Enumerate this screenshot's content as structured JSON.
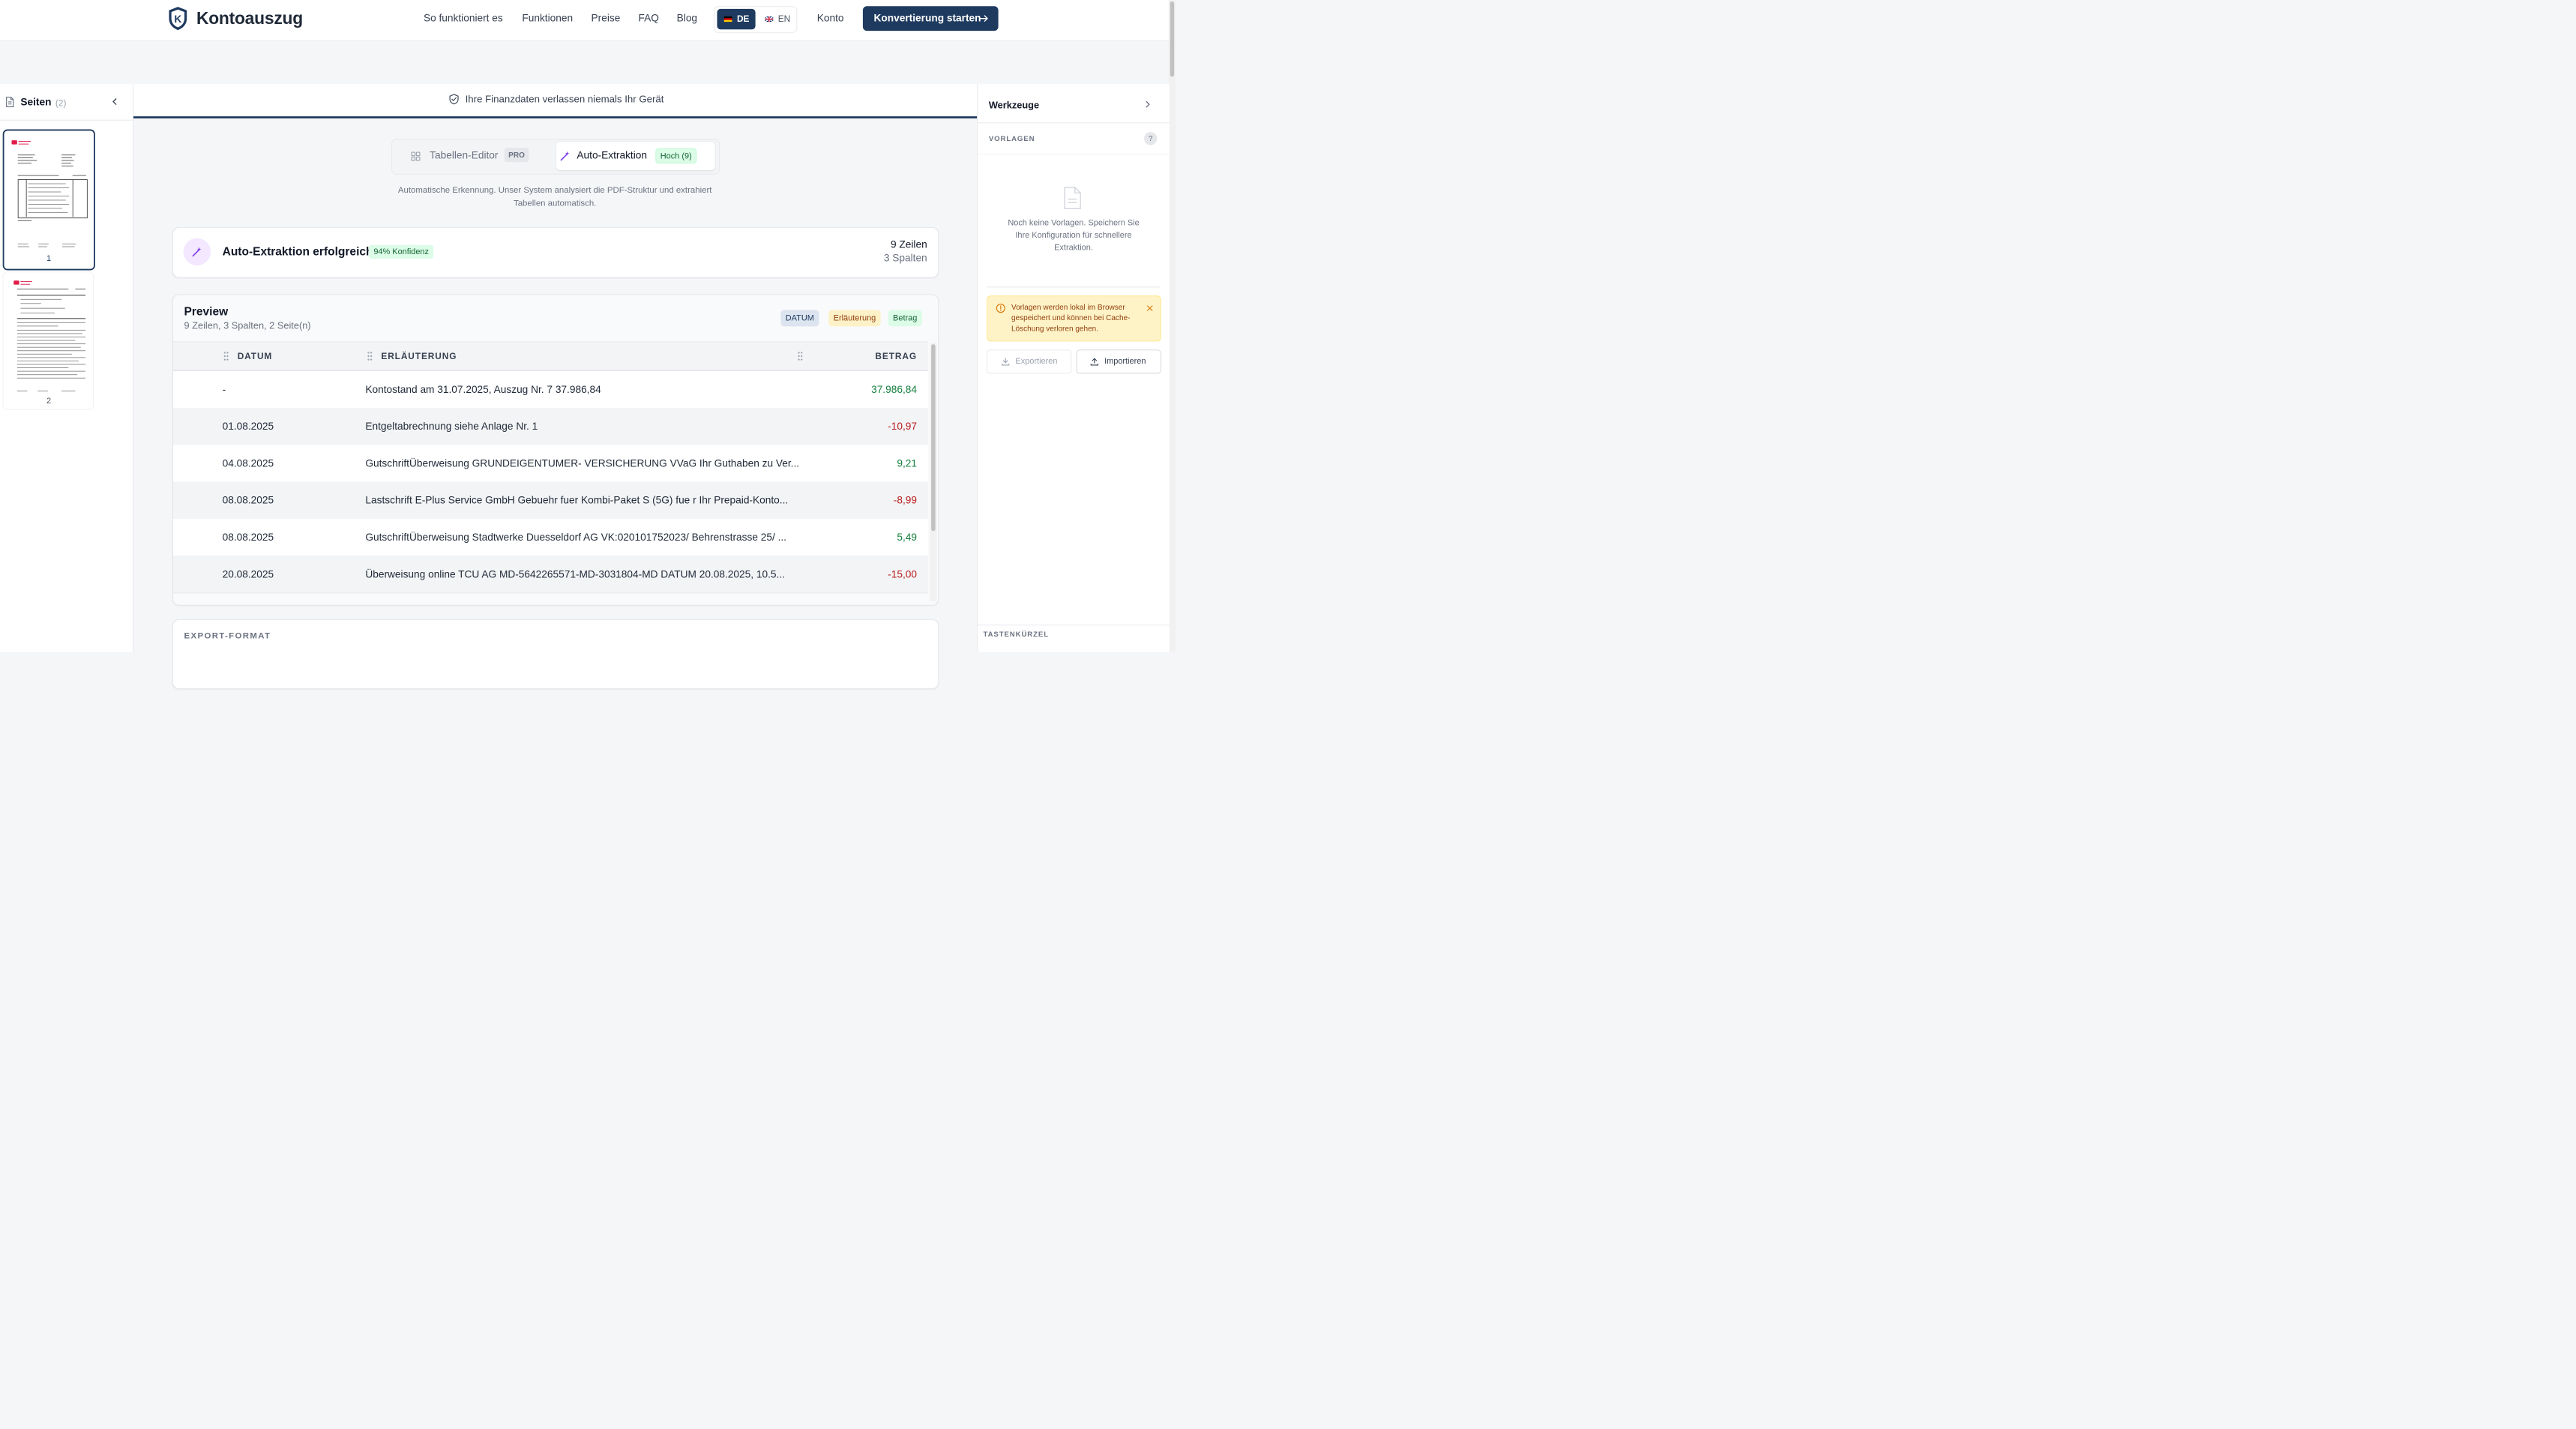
{
  "brand": {
    "name": "Kontoauszug",
    "logo_letter": "K"
  },
  "nav": {
    "items": [
      "So funktioniert es",
      "Funktionen",
      "Preise",
      "FAQ",
      "Blog"
    ],
    "lang_de": "DE",
    "lang_en": "EN",
    "account": "Konto",
    "cta": "Konvertierung starten"
  },
  "colors": {
    "primary": "#1e3a5f",
    "positive": "#15803d",
    "negative": "#b91c1c",
    "accent_purple": "#7c3aed"
  },
  "pages_panel": {
    "title": "Seiten",
    "count": "(2)",
    "pages": [
      "1",
      "2"
    ],
    "selected": "1"
  },
  "privacy_note": "Ihre Finanzdaten verlassen niemals Ihr Gerät",
  "mode_tabs": {
    "editor": {
      "label": "Tabellen-Editor",
      "badge": "PRO"
    },
    "auto": {
      "label": "Auto-Extraktion",
      "badge": "Hoch (9)"
    },
    "description": "Automatische Erkennung. Unser System analysiert die PDF-Struktur und extrahiert Tabellen automatisch."
  },
  "extraction": {
    "title": "Auto-Extraktion erfolgreich",
    "confidence": "94% Konfidenz",
    "rows": "9 Zeilen",
    "cols": "3 Spalten"
  },
  "preview": {
    "title": "Preview",
    "subtitle": "9 Zeilen, 3 Spalten, 2 Seite(n)",
    "tags": [
      "DATUM",
      "Erläuterung",
      "Betrag"
    ],
    "headers": {
      "date": "DATUM",
      "desc": "ERLÄUTERUNG",
      "amount": "BETRAG"
    },
    "rows": [
      {
        "date": "-",
        "desc": "Kontostand am 31.07.2025, Auszug Nr. 7 37.986,84",
        "amount": "37.986,84",
        "sign": "pos"
      },
      {
        "date": "01.08.2025",
        "desc": "Entgeltabrechnung siehe Anlage Nr. 1",
        "amount": "-10,97",
        "sign": "neg"
      },
      {
        "date": "04.08.2025",
        "desc": "GutschriftÜberweisung GRUNDEIGENTUMER- VERSICHERUNG VVaG Ihr Guthaben zu Ver...",
        "amount": "9,21",
        "sign": "pos"
      },
      {
        "date": "08.08.2025",
        "desc": "Lastschrift E-Plus Service GmbH Gebuehr fuer Kombi-Paket S (5G) fue r Ihr Prepaid-Konto...",
        "amount": "-8,99",
        "sign": "neg"
      },
      {
        "date": "08.08.2025",
        "desc": "GutschriftÜberweisung Stadtwerke Duesseldorf AG VK:020101752023/ Behrenstrasse 25/ ...",
        "amount": "5,49",
        "sign": "pos"
      },
      {
        "date": "20.08.2025",
        "desc": "Überweisung online TCU AG MD-5642265571-MD-3031804-MD DATUM 20.08.2025, 10.5...",
        "amount": "-15,00",
        "sign": "neg"
      }
    ]
  },
  "export": {
    "title": "EXPORT-FORMAT"
  },
  "tools": {
    "title": "Werkzeuge",
    "templates_label": "VORLAGEN",
    "help": "?",
    "empty_text": "Noch keine Vorlagen. Speichern Sie Ihre Konfiguration für schnellere Extraktion.",
    "warning": "Vorlagen werden lokal im Browser gespeichert und können bei Cache-Löschung verloren gehen.",
    "export_btn": "Exportieren",
    "import_btn": "Importieren",
    "shortcuts": "TASTENKÜRZEL"
  }
}
